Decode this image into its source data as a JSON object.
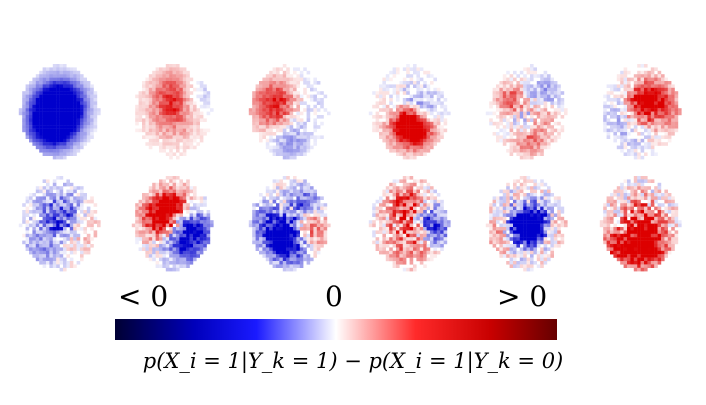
{
  "colors": {
    "negative": "#0000cc",
    "zero": "#ffffff",
    "positive": "#dd0000"
  },
  "colorbar": {
    "tick_neg": "< 0",
    "tick_zero": "0",
    "tick_pos": "> 0",
    "label": "p(X_i = 1|Y_k = 1) − p(X_i = 1|Y_k = 0)"
  },
  "heatmaps": {
    "rows": 2,
    "columns": 6,
    "panels": [
      "panel-1",
      "panel-2",
      "panel-3",
      "panel-4",
      "panel-5",
      "panel-6",
      "panel-7",
      "panel-8",
      "panel-9",
      "panel-10",
      "panel-11",
      "panel-12"
    ]
  }
}
